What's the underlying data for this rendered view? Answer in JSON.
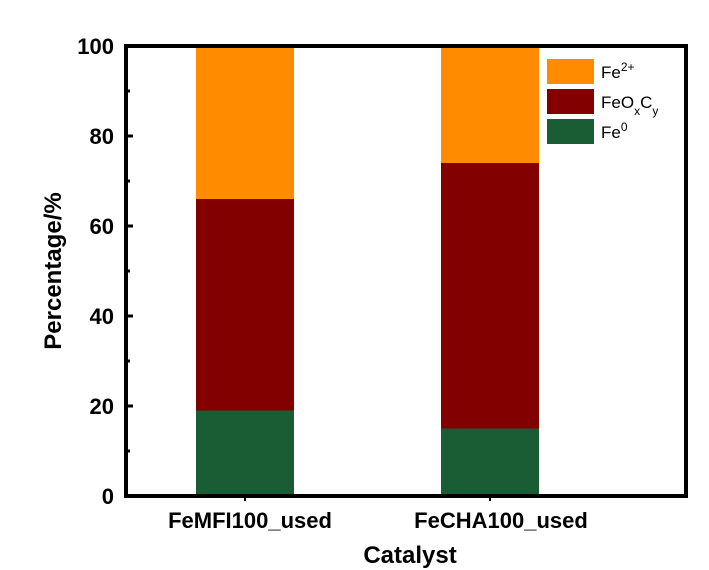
{
  "chart_data": {
    "type": "bar",
    "stacked": true,
    "title": "",
    "xlabel": "Catalyst",
    "ylabel": "Percentage/%",
    "ylim": [
      0,
      100
    ],
    "yticks": [
      0,
      20,
      40,
      60,
      80,
      100
    ],
    "categories": [
      "FeMFI100_used",
      "FeCHA100_used"
    ],
    "series": [
      {
        "name": "Fe0",
        "values": [
          19,
          15
        ],
        "color": "#1a5c33"
      },
      {
        "name": "FeOxCy",
        "values": [
          47,
          59
        ],
        "color": "#820000"
      },
      {
        "name": "Fe2+",
        "values": [
          34,
          26
        ],
        "color": "#ff8c00"
      }
    ],
    "legend": {
      "position": "top-right",
      "order": [
        "Fe2+",
        "FeOxCy",
        "Fe0"
      ],
      "labels": {
        "Fe2+": {
          "base": "Fe",
          "sup": "2+"
        },
        "FeOxCy": {
          "parts": [
            {
              "t": "FeO"
            },
            {
              "sub": "x"
            },
            {
              "t": "C"
            },
            {
              "sub": "y"
            }
          ]
        },
        "Fe0": {
          "base": "Fe",
          "sup": "0"
        }
      }
    },
    "grid": false
  }
}
